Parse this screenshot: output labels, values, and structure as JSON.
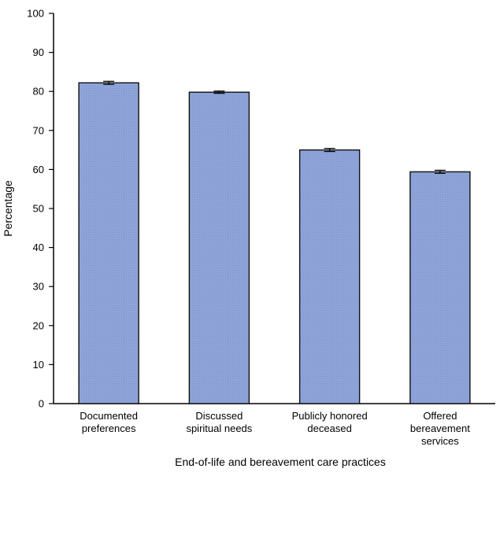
{
  "chart_data": {
    "type": "bar",
    "title": "",
    "xlabel": "End-of-life and bereavement care practices",
    "ylabel": "Percentage",
    "ylim": [
      0,
      100
    ],
    "yticks": [
      0,
      10,
      20,
      30,
      40,
      50,
      60,
      70,
      80,
      90,
      100
    ],
    "categories": [
      [
        "Documented",
        "preferences"
      ],
      [
        "Discussed",
        "spiritual needs"
      ],
      [
        "Publicly honored",
        "deceased"
      ],
      [
        "Offered",
        "bereavement",
        "services"
      ]
    ],
    "values": [
      82.2,
      79.8,
      65.0,
      59.4
    ],
    "error_bars": [
      [
        81.8,
        82.6
      ],
      [
        79.5,
        80.1
      ],
      [
        64.6,
        65.4
      ],
      [
        59.0,
        59.8
      ]
    ],
    "grid": false,
    "legend": "none",
    "bar_color": "#8ea3d8",
    "bar_edge_color": "#111111"
  }
}
